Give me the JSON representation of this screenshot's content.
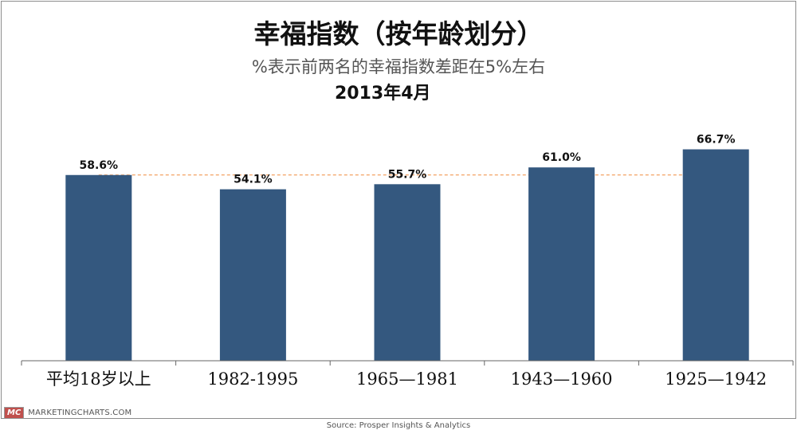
{
  "chart_data": {
    "type": "bar",
    "title": "幸福指数（按年龄划分）",
    "subtitle": "%表示前两名的幸福指数差距在5%左右",
    "date_label": "2013年4月",
    "categories": [
      "平均18岁以上",
      "1982-1995",
      "1965—1981",
      "1943—1960",
      "1925—1942"
    ],
    "values": [
      58.6,
      54.1,
      55.7,
      61.0,
      66.7
    ],
    "value_labels": [
      "58.6%",
      "54.1%",
      "55.7%",
      "61.0%",
      "66.7%"
    ],
    "reference_line": {
      "value": 58.6,
      "style": "dashed",
      "color": "#f08a3c"
    },
    "ylim": [
      0,
      70
    ],
    "bar_color": "#34587f",
    "grid": false,
    "legend": "none",
    "xlabel": "",
    "ylabel": ""
  },
  "footer": {
    "logo_text": "MC",
    "brand_text": "MARKETINGCHARTS.COM",
    "source": "Source: Prosper Insights & Analytics"
  },
  "colors": {
    "logo_bg": "#c0504d"
  }
}
